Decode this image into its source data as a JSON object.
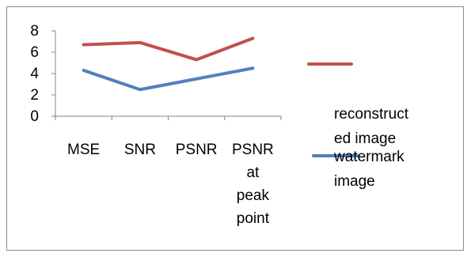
{
  "chart_data": {
    "type": "line",
    "categories": [
      [
        "MSE"
      ],
      [
        "SNR"
      ],
      [
        "PSNR"
      ],
      [
        "PSNR",
        "at",
        "peak",
        "point"
      ]
    ],
    "series": [
      {
        "name": [
          "reconstruct",
          "ed image"
        ],
        "color": "#c0504d",
        "values": [
          6.7,
          6.9,
          5.3,
          7.3
        ]
      },
      {
        "name": [
          " watermark",
          "image"
        ],
        "color": "#4f81bd",
        "values": [
          4.3,
          2.5,
          3.5,
          4.5
        ]
      }
    ],
    "yticks": [
      "0",
      "2",
      "4",
      "6",
      "8"
    ],
    "ylim": [
      0,
      8
    ],
    "grid": false,
    "legend": "right"
  }
}
